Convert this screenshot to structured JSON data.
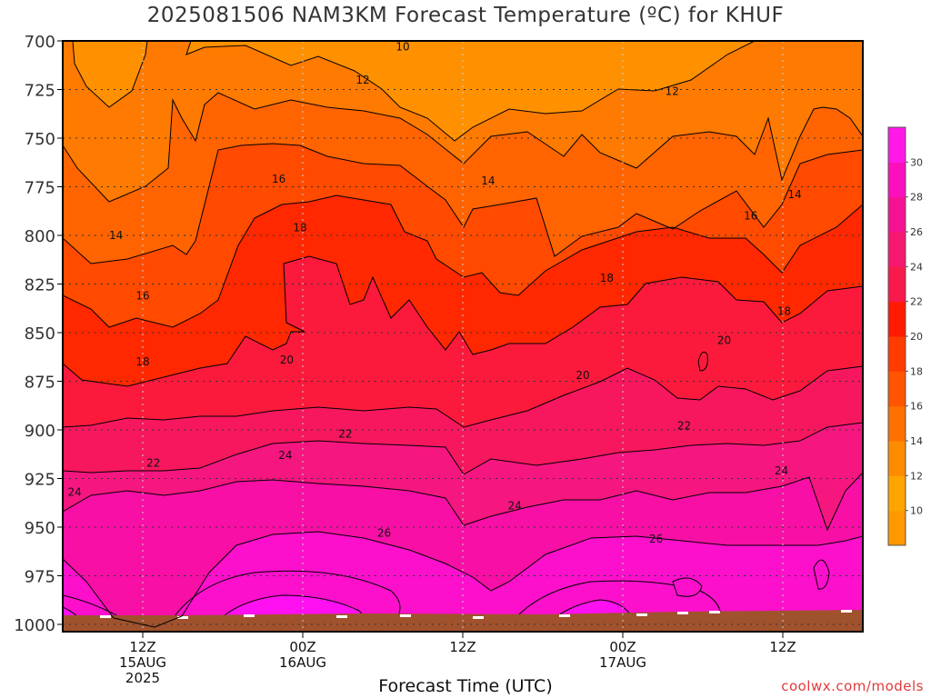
{
  "chart_data": {
    "type": "heatmap",
    "title": "2025081506 NAM3KM Forecast Temperature (ºC) for KHUF",
    "xlabel": "Forecast Time (UTC)",
    "credit": "coolwx.com/models",
    "y_axis": {
      "label": "",
      "reversed": true,
      "ylim": [
        700,
        1000
      ],
      "ticks": [
        700,
        725,
        750,
        775,
        800,
        825,
        850,
        875,
        900,
        925,
        950,
        975,
        1000
      ]
    },
    "x_axis": {
      "xlim_hours": [
        6,
        66
      ],
      "ticks": [
        {
          "hour": 12,
          "lines": [
            "12Z",
            "15AUG",
            "2025"
          ]
        },
        {
          "hour": 24,
          "lines": [
            "00Z",
            "16AUG"
          ]
        },
        {
          "hour": 36,
          "lines": [
            "12Z"
          ]
        },
        {
          "hour": 48,
          "lines": [
            "00Z",
            "17AUG"
          ]
        },
        {
          "hour": 60,
          "lines": [
            "12Z"
          ]
        }
      ]
    },
    "grid": true,
    "contour_levels": [
      10,
      12,
      14,
      16,
      18,
      20,
      22,
      24,
      26,
      28,
      30
    ],
    "contour_labels": [
      {
        "hour": 31.5,
        "p": 703,
        "value": "10"
      },
      {
        "hour": 28.5,
        "p": 720,
        "value": "12"
      },
      {
        "hour": 51.7,
        "p": 726,
        "value": "12"
      },
      {
        "hour": 37.9,
        "p": 772,
        "value": "14"
      },
      {
        "hour": 60.9,
        "p": 779,
        "value": "14"
      },
      {
        "hour": 10.0,
        "p": 800,
        "value": "14"
      },
      {
        "hour": 22.2,
        "p": 771,
        "value": "16"
      },
      {
        "hour": 57.6,
        "p": 790,
        "value": "16"
      },
      {
        "hour": 12.0,
        "p": 831,
        "value": "16"
      },
      {
        "hour": 23.8,
        "p": 796,
        "value": "18"
      },
      {
        "hour": 46.8,
        "p": 822,
        "value": "18"
      },
      {
        "hour": 60.1,
        "p": 839,
        "value": "18"
      },
      {
        "hour": 12.0,
        "p": 865,
        "value": "18"
      },
      {
        "hour": 22.8,
        "p": 864,
        "value": "20"
      },
      {
        "hour": 45.0,
        "p": 872,
        "value": "20"
      },
      {
        "hour": 55.6,
        "p": 854,
        "value": "20"
      },
      {
        "hour": 27.2,
        "p": 902,
        "value": "22"
      },
      {
        "hour": 12.8,
        "p": 917,
        "value": "22"
      },
      {
        "hour": 52.6,
        "p": 898,
        "value": "22"
      },
      {
        "hour": 22.7,
        "p": 913,
        "value": "24"
      },
      {
        "hour": 6.9,
        "p": 932,
        "value": "24"
      },
      {
        "hour": 39.9,
        "p": 939,
        "value": "24"
      },
      {
        "hour": 59.9,
        "p": 921,
        "value": "24"
      },
      {
        "hour": 30.1,
        "p": 953,
        "value": "26"
      },
      {
        "hour": 50.5,
        "p": 956,
        "value": "26"
      }
    ],
    "colorbar": {
      "ticks": [
        10,
        12,
        14,
        16,
        18,
        20,
        22,
        24,
        26,
        28,
        30
      ],
      "colors": [
        "#ff9900",
        "#ffa500",
        "#ff8c00",
        "#ff7000",
        "#ff5500",
        "#ff3b00",
        "#ff1a00",
        "#f71a4a",
        "#f61870",
        "#f51292",
        "#fc10bd",
        "#ff18e6"
      ]
    },
    "fill_colors": {
      "t8_10": "#ffa500",
      "t10_12": "#ff9100",
      "t12_14": "#ff7a00",
      "t14_16": "#ff6400",
      "t16_18": "#ff4a00",
      "t18_20": "#ff2800",
      "t20_22": "#fb1a3c",
      "t22_24": "#f7175e",
      "t24_26": "#f51680",
      "t26_28": "#f70fa6",
      "t28_30": "#fc10cc",
      "t30_32": "#ff10f0",
      "ground": "#a0522d"
    }
  }
}
